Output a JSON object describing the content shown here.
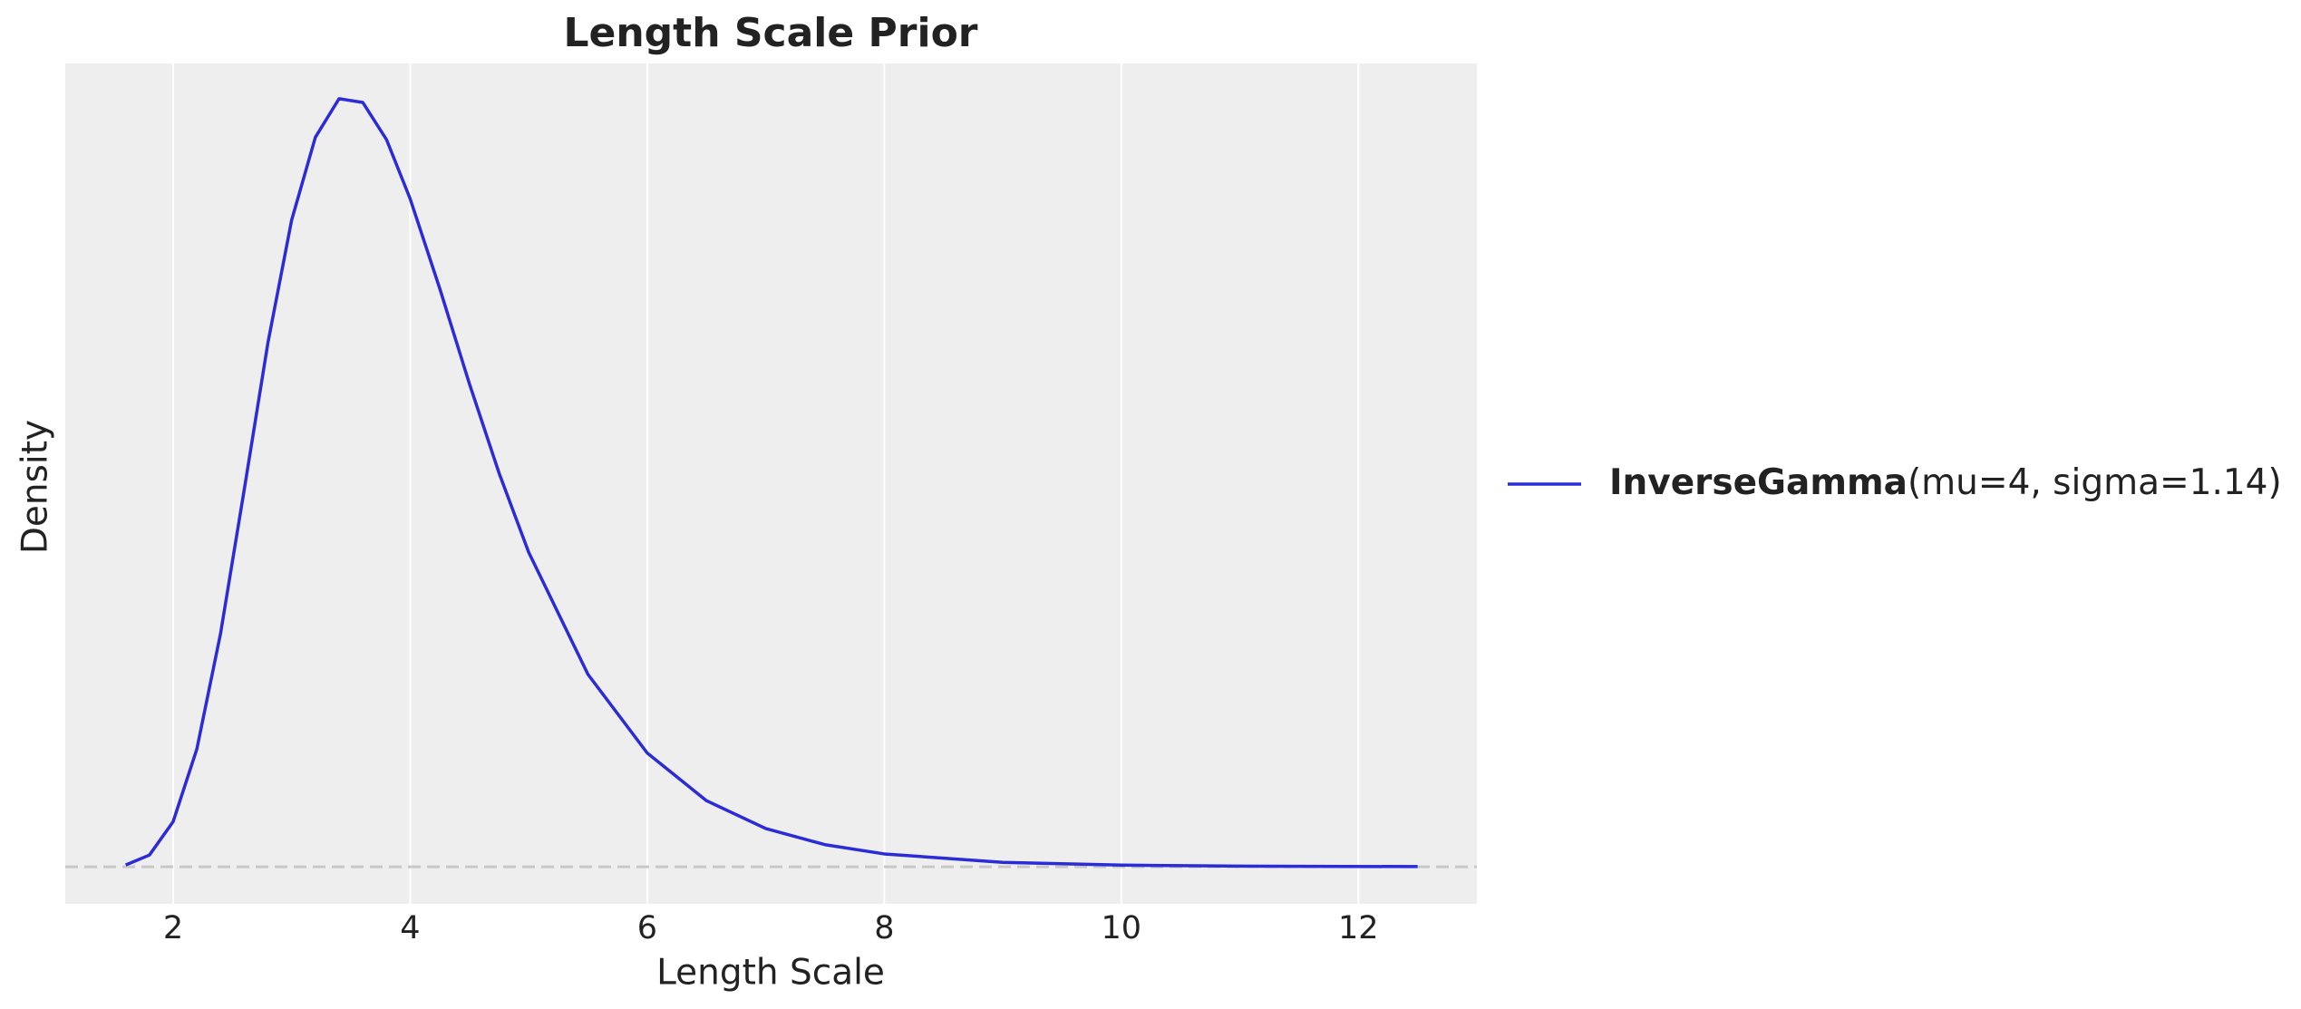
{
  "chart_data": {
    "type": "line",
    "title": "Length Scale Prior",
    "x_label": "Length Scale",
    "y_label": "Density",
    "x": [
      1.6,
      1.8,
      2.0,
      2.2,
      2.4,
      2.6,
      2.8,
      3.0,
      3.2,
      3.4,
      3.6,
      3.8,
      4.0,
      4.25,
      4.5,
      4.75,
      5.0,
      5.5,
      6.0,
      6.5,
      7.0,
      7.5,
      8,
      9,
      10,
      11,
      12.5
    ],
    "series": [
      {
        "name": "InverseGamma",
        "params": "(mu=4, sigma=1.14)",
        "color": "#2b2bd8",
        "values": [
          0.00095,
          0.0063,
          0.0243,
          0.0634,
          0.1257,
          0.2033,
          0.2825,
          0.3486,
          0.3932,
          0.414,
          0.412,
          0.392,
          0.36,
          0.3116,
          0.2603,
          0.2122,
          0.1695,
          0.1037,
          0.0613,
          0.0356,
          0.0206,
          0.0119,
          0.0069,
          0.00238,
          0.00086,
          0.00032,
          8e-05
        ]
      }
    ],
    "xlim": [
      1.09,
      13.0
    ],
    "ylim": [
      -0.02,
      0.433
    ],
    "xticks": [
      2,
      4,
      6,
      8,
      10,
      12
    ],
    "yticks": [],
    "reference_line": 0,
    "grid": true,
    "legend": "right"
  }
}
